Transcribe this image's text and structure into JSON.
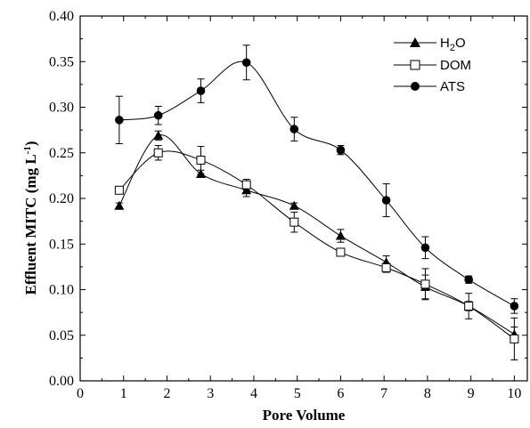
{
  "chart_data": {
    "type": "line",
    "xlabel": "Pore Volume",
    "ylabel": "Effluent MITC (mg L",
    "ylabel_sup": "-1",
    "ylabel_close": ")",
    "xlim": [
      0,
      10.3
    ],
    "ylim": [
      0,
      0.4
    ],
    "x_ticks": [
      0,
      1,
      2,
      3,
      4,
      5,
      6,
      7,
      8,
      9,
      10
    ],
    "x_tick_labels": [
      "0",
      "1",
      "2",
      "3",
      "4",
      "5",
      "6",
      "7",
      "8",
      "9",
      "10"
    ],
    "y_ticks": [
      0,
      0.05,
      0.1,
      0.15,
      0.2,
      0.25,
      0.3,
      0.35,
      0.4
    ],
    "y_tick_labels": [
      "0.00",
      "0.05",
      "0.10",
      "0.15",
      "0.20",
      "0.25",
      "0.30",
      "0.35",
      "0.40"
    ],
    "grid": false,
    "legend_position": "top-right",
    "series": [
      {
        "name": "H2O",
        "legend_label": {
          "main": "H",
          "sub": "2",
          "rest": "O"
        },
        "marker": "filled-triangle",
        "color": "#000000",
        "x": [
          0.9,
          1.8,
          2.78,
          3.83,
          4.93,
          6.0,
          7.05,
          7.95,
          8.95,
          10.0
        ],
        "y": [
          0.192,
          0.269,
          0.227,
          0.209,
          0.192,
          0.159,
          0.13,
          0.103,
          0.082,
          0.051
        ],
        "err": [
          0.003,
          0.005,
          0.004,
          0.007,
          0.003,
          0.007,
          0.007,
          0.013,
          0.005,
          0.008
        ]
      },
      {
        "name": "DOM",
        "marker": "open-square",
        "color": "#000000",
        "x": [
          0.9,
          1.8,
          2.78,
          3.83,
          4.93,
          6.0,
          7.05,
          7.95,
          8.95,
          10.0
        ],
        "y": [
          0.209,
          0.25,
          0.242,
          0.215,
          0.174,
          0.141,
          0.124,
          0.106,
          0.082,
          0.046
        ],
        "err": [
          0.003,
          0.008,
          0.015,
          0.006,
          0.011,
          0.002,
          0.005,
          0.017,
          0.014,
          0.023
        ]
      },
      {
        "name": "ATS",
        "marker": "filled-circle",
        "color": "#000000",
        "x": [
          0.9,
          1.8,
          2.78,
          3.83,
          4.93,
          6.0,
          7.05,
          7.95,
          8.95,
          10.0
        ],
        "y": [
          0.286,
          0.291,
          0.318,
          0.349,
          0.276,
          0.253,
          0.198,
          0.146,
          0.111,
          0.082
        ],
        "err": [
          0.026,
          0.01,
          0.013,
          0.019,
          0.013,
          0.005,
          0.018,
          0.012,
          0.004,
          0.008
        ]
      }
    ]
  }
}
